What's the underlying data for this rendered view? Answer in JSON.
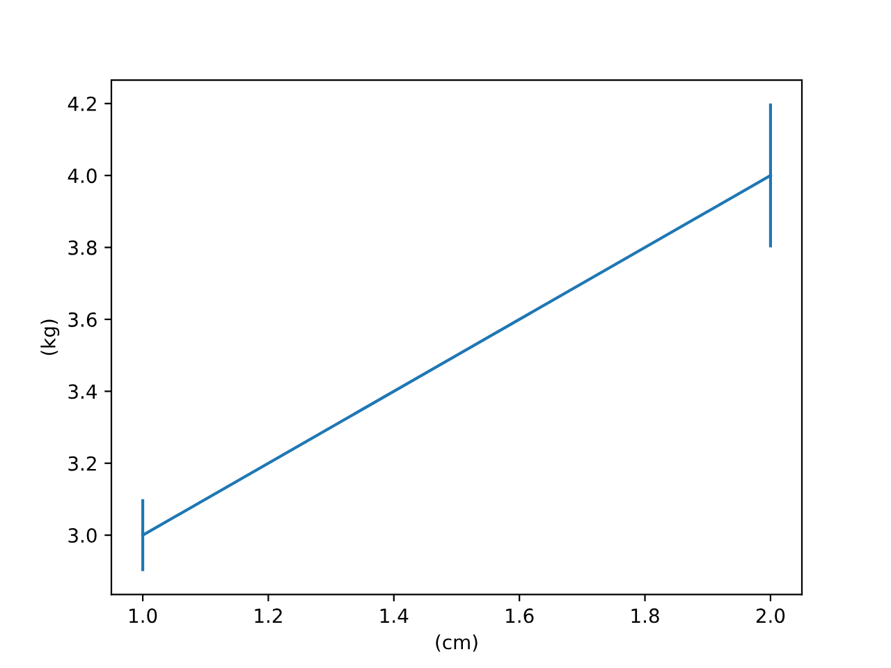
{
  "chart_data": {
    "type": "line",
    "xlabel": "(cm)",
    "ylabel": "(kg)",
    "x": [
      1,
      2
    ],
    "series": [
      {
        "color": "#1f77b4",
        "values": [
          3,
          4
        ],
        "errors": [
          0.1,
          0.2
        ]
      }
    ],
    "xlim": [
      0.95,
      2.05
    ],
    "ylim": [
      2.835,
      4.265
    ],
    "xticks": [
      {
        "value": 1,
        "label": "1.0"
      },
      1.2,
      1.4,
      1.6,
      1.8,
      {
        "value": 2,
        "label": "2.0"
      }
    ],
    "yticks": [
      {
        "value": 3,
        "label": "3.0"
      },
      3.2,
      3.4,
      3.6,
      3.8,
      {
        "value": 4,
        "label": "4.0"
      },
      4.2
    ],
    "grid": false,
    "marker": "none",
    "line_style": "solid"
  }
}
